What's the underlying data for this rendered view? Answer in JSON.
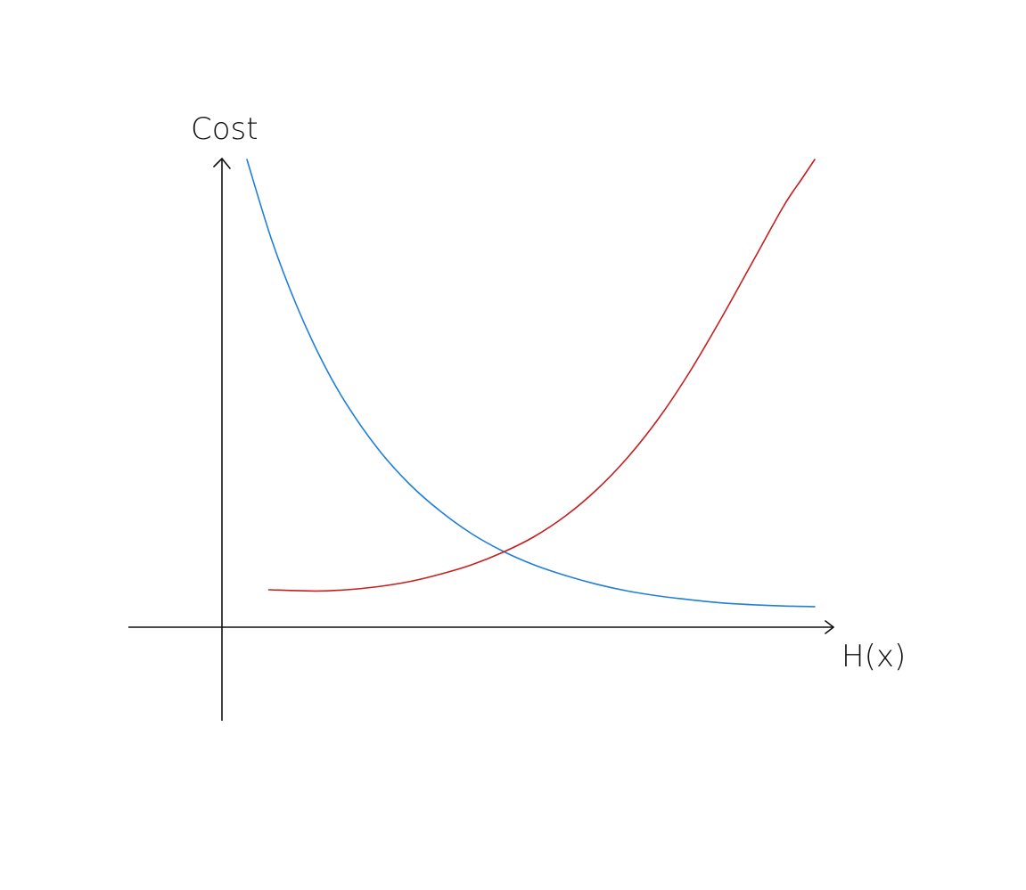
{
  "chart_data": {
    "type": "line",
    "title": "",
    "xlabel": "H(x)",
    "ylabel": "Cost",
    "xlim": [
      -1.5,
      9.5
    ],
    "ylim": [
      -1.5,
      7.5
    ],
    "grid": false,
    "legend": "none",
    "axes_color": "#111111",
    "series": [
      {
        "color": "#1f7fd8",
        "x": [
          0.4,
          0.8,
          1.2,
          1.6,
          2.0,
          2.5,
          3.0,
          3.5,
          4.0,
          4.5,
          5.0,
          5.5,
          6.0,
          6.5,
          7.0,
          7.5,
          8.0,
          8.5,
          9.0,
          9.5
        ],
        "y": [
          7.5,
          6.2,
          5.15,
          4.28,
          3.57,
          2.86,
          2.3,
          1.86,
          1.5,
          1.22,
          1.0,
          0.83,
          0.69,
          0.58,
          0.5,
          0.44,
          0.39,
          0.36,
          0.34,
          0.33
        ]
      },
      {
        "color": "#c81e1e",
        "x": [
          0.75,
          1.5,
          2.0,
          2.5,
          3.0,
          3.5,
          4.0,
          4.5,
          5.0,
          5.5,
          6.0,
          6.5,
          7.0,
          7.5,
          8.0,
          8.5,
          9.0,
          9.3,
          9.5
        ],
        "y": [
          0.6,
          0.58,
          0.6,
          0.65,
          0.73,
          0.85,
          1.0,
          1.2,
          1.45,
          1.78,
          2.2,
          2.72,
          3.35,
          4.1,
          4.95,
          5.85,
          6.75,
          7.2,
          7.5
        ]
      }
    ]
  }
}
